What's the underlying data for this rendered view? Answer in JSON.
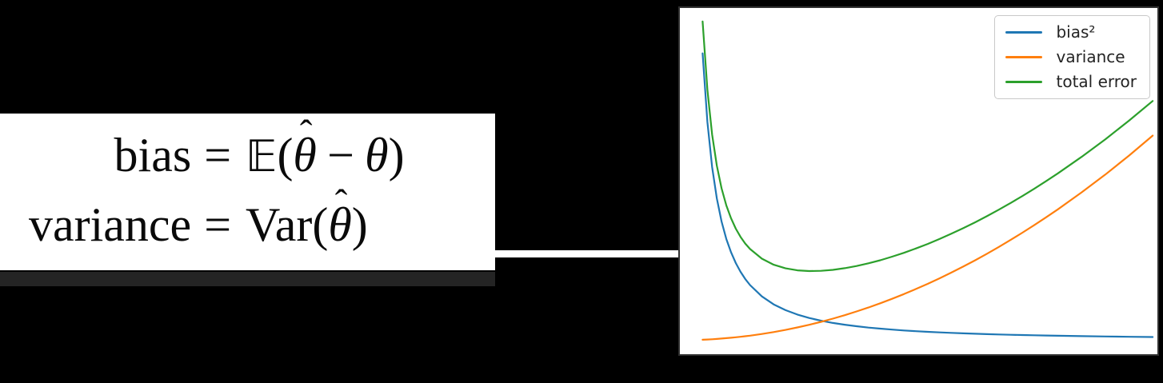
{
  "scene": {
    "background_color": "#000000",
    "panel_bg": "#ffffff",
    "panel_shadow_color": "#242424",
    "connector_color": "#ffffff"
  },
  "formula_panel": {
    "line1": {
      "lhs": "bias",
      "eq": "=",
      "operator": "𝔼",
      "open_paren": "(",
      "hat": "ˆ",
      "theta_hat_letter": "θ",
      "minus": "−",
      "theta": "θ",
      "close_paren": ")"
    },
    "line2": {
      "lhs": "variance",
      "eq": "=",
      "operator": "Var",
      "open_paren": "(",
      "hat": "ˆ",
      "theta_hat_letter": "θ",
      "close_paren": ")"
    }
  },
  "chart": {
    "bg": "#ffffff",
    "border_color": "#303030",
    "legend_border_color": "#c9c9c9"
  },
  "chart_data": {
    "type": "line",
    "title": "",
    "xlabel": "",
    "ylabel": "",
    "grid": false,
    "ticks_visible": false,
    "legend_position": "upper right",
    "xlim": [
      0.02,
      10.1
    ],
    "ylim": [
      -8,
      190
    ],
    "x": [
      0.5,
      0.6,
      0.7,
      0.8,
      0.9,
      1.0,
      1.1,
      1.2,
      1.3,
      1.4,
      1.5,
      1.75,
      2.0,
      2.25,
      2.5,
      2.75,
      3.0,
      3.25,
      3.5,
      3.75,
      4.0,
      4.25,
      4.5,
      4.75,
      5.0,
      5.25,
      5.5,
      5.75,
      6.0,
      6.25,
      6.5,
      6.75,
      7.0,
      7.25,
      7.5,
      7.75,
      8.0,
      8.5,
      9.0,
      9.5,
      10.0
    ],
    "series": [
      {
        "name": "bias²",
        "color": "#1f77b4",
        "values": [
          164.05,
          124.79,
          99.03,
          81.06,
          67.93,
          58.0,
          50.27,
          44.12,
          39.13,
          35.01,
          31.57,
          25.05,
          20.51,
          17.19,
          14.67,
          12.72,
          11.16,
          9.9,
          8.86,
          7.99,
          7.25,
          6.62,
          6.08,
          5.6,
          5.19,
          4.82,
          4.5,
          4.21,
          3.95,
          3.71,
          3.5,
          3.31,
          3.13,
          2.97,
          2.82,
          2.69,
          2.56,
          2.34,
          2.15,
          1.98,
          1.83
        ]
      },
      {
        "name": "variance",
        "color": "#ff7f0e",
        "values": [
          0.29,
          0.42,
          0.57,
          0.75,
          0.95,
          1.17,
          1.42,
          1.68,
          1.98,
          2.29,
          2.63,
          3.58,
          4.68,
          5.92,
          7.31,
          8.85,
          10.53,
          12.36,
          14.33,
          16.45,
          18.72,
          21.13,
          23.69,
          26.4,
          29.25,
          32.25,
          35.39,
          38.68,
          42.12,
          45.7,
          49.43,
          53.31,
          57.33,
          61.5,
          65.81,
          70.27,
          74.88,
          84.53,
          94.77,
          105.59,
          117.0
        ]
      },
      {
        "name": "total error",
        "color": "#2ca02c",
        "values": [
          182.34,
          143.21,
          117.6,
          99.81,
          86.88,
          77.17,
          69.69,
          63.8,
          59.11,
          55.3,
          52.2,
          46.63,
          43.19,
          41.11,
          39.98,
          39.57,
          39.69,
          40.26,
          41.19,
          42.44,
          43.97,
          45.75,
          47.77,
          50.0,
          52.44,
          55.07,
          57.89,
          60.89,
          64.07,
          67.41,
          70.93,
          74.62,
          78.46,
          82.47,
          86.63,
          90.96,
          95.44,
          104.87,
          114.92,
          125.57,
          136.83
        ]
      }
    ]
  }
}
